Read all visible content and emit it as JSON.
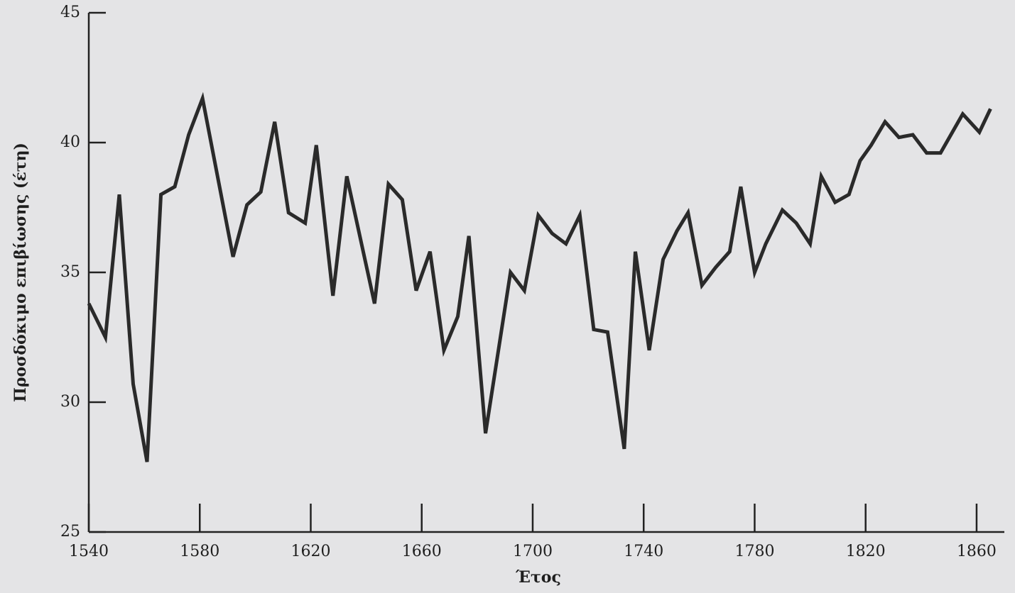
{
  "chart_data": {
    "type": "line",
    "x_label": "Έτος",
    "y_label": "Προσδόκιμο επιβίωσης (έτη)",
    "x": [
      1540,
      1546,
      1551,
      1556,
      1561,
      1566,
      1571,
      1576,
      1581,
      1592,
      1597,
      1602,
      1607,
      1612,
      1618,
      1622,
      1628,
      1633,
      1643,
      1648,
      1653,
      1658,
      1663,
      1668,
      1673,
      1677,
      1683,
      1692,
      1697,
      1702,
      1707,
      1712,
      1717,
      1722,
      1727,
      1733,
      1737,
      1742,
      1747,
      1752,
      1756,
      1761,
      1766,
      1771,
      1775,
      1780,
      1784,
      1790,
      1795,
      1800,
      1804,
      1809,
      1814,
      1818,
      1822,
      1827,
      1832,
      1837,
      1842,
      1847,
      1855,
      1861,
      1865
    ],
    "values": [
      33.8,
      32.5,
      38.0,
      30.7,
      27.7,
      38.0,
      38.3,
      40.3,
      41.7,
      35.6,
      37.6,
      38.1,
      40.8,
      37.3,
      36.9,
      39.9,
      34.1,
      38.7,
      33.8,
      38.4,
      37.8,
      34.3,
      35.8,
      32.0,
      33.3,
      36.4,
      28.8,
      35.0,
      34.3,
      37.2,
      36.5,
      36.1,
      37.2,
      32.8,
      32.7,
      28.2,
      35.8,
      32.0,
      35.5,
      36.6,
      37.3,
      34.5,
      35.2,
      35.8,
      38.3,
      35.0,
      36.1,
      37.4,
      36.9,
      36.1,
      38.7,
      37.7,
      38.0,
      39.3,
      39.9,
      40.8,
      40.2,
      40.3,
      39.6,
      39.6,
      41.1,
      40.4,
      41.3
    ],
    "color": "#2a2a2a",
    "xlim": [
      1540,
      1870
    ],
    "xticks": [
      1540,
      1580,
      1620,
      1660,
      1700,
      1740,
      1780,
      1820,
      1860
    ],
    "ylim": [
      25,
      45
    ],
    "yticks": [
      25,
      30,
      35,
      40,
      45
    ]
  }
}
